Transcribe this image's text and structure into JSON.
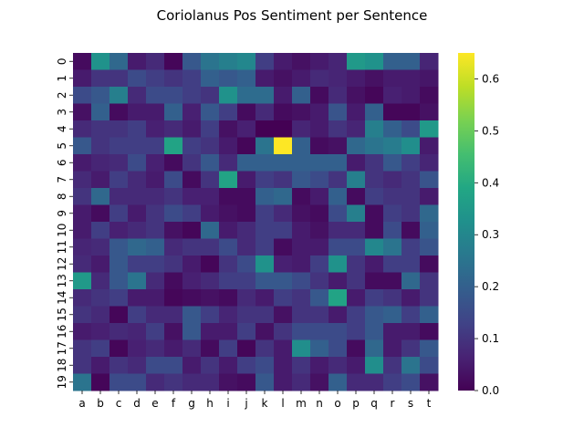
{
  "chart_data": {
    "type": "heatmap",
    "title": "Coriolanus Pos Sentiment per Sentence",
    "xlabel": "",
    "ylabel": "",
    "x_categories": [
      "a",
      "b",
      "c",
      "d",
      "e",
      "f",
      "g",
      "h",
      "i",
      "j",
      "k",
      "l",
      "m",
      "n",
      "o",
      "p",
      "q",
      "r",
      "s",
      "t"
    ],
    "y_categories": [
      "0",
      "1",
      "2",
      "3",
      "4",
      "5",
      "6",
      "7",
      "8",
      "9",
      "10",
      "11",
      "12",
      "13",
      "14",
      "15",
      "16",
      "17",
      "18",
      "19"
    ],
    "colormap": "viridis",
    "vmin": 0.0,
    "vmax": 0.65,
    "colorbar_ticks": [
      "0.0",
      "0.1",
      "0.2",
      "0.3",
      "0.4",
      "0.5",
      "0.6"
    ],
    "values": [
      [
        0.02,
        0.33,
        0.22,
        0.05,
        0.08,
        0.01,
        0.18,
        0.25,
        0.28,
        0.3,
        0.12,
        0.05,
        0.03,
        0.05,
        0.07,
        0.35,
        0.33,
        0.2,
        0.2,
        0.07
      ],
      [
        0.05,
        0.1,
        0.1,
        0.15,
        0.12,
        0.1,
        0.12,
        0.2,
        0.18,
        0.2,
        0.05,
        0.03,
        0.05,
        0.08,
        0.07,
        0.05,
        0.03,
        0.05,
        0.05,
        0.04
      ],
      [
        0.15,
        0.18,
        0.28,
        0.08,
        0.15,
        0.15,
        0.12,
        0.1,
        0.33,
        0.23,
        0.23,
        0.05,
        0.2,
        0.02,
        0.08,
        0.03,
        0.01,
        0.06,
        0.05,
        0.02
      ],
      [
        0.03,
        0.2,
        0.02,
        0.05,
        0.05,
        0.2,
        0.06,
        0.18,
        0.12,
        0.02,
        0.08,
        0.02,
        0.03,
        0.05,
        0.17,
        0.05,
        0.2,
        0.01,
        0.01,
        0.03
      ],
      [
        0.08,
        0.1,
        0.1,
        0.12,
        0.06,
        0.08,
        0.05,
        0.12,
        0.03,
        0.06,
        0.0,
        0.0,
        0.07,
        0.05,
        0.1,
        0.07,
        0.28,
        0.2,
        0.15,
        0.35
      ],
      [
        0.18,
        0.1,
        0.12,
        0.12,
        0.12,
        0.38,
        0.12,
        0.1,
        0.05,
        0.01,
        0.25,
        0.65,
        0.2,
        0.02,
        0.03,
        0.22,
        0.25,
        0.27,
        0.32,
        0.05
      ],
      [
        0.05,
        0.07,
        0.08,
        0.15,
        0.06,
        0.02,
        0.1,
        0.18,
        0.08,
        0.2,
        0.2,
        0.2,
        0.2,
        0.2,
        0.2,
        0.05,
        0.1,
        0.18,
        0.12,
        0.07
      ],
      [
        0.08,
        0.05,
        0.12,
        0.08,
        0.05,
        0.15,
        0.02,
        0.1,
        0.38,
        0.05,
        0.12,
        0.1,
        0.18,
        0.15,
        0.1,
        0.28,
        0.1,
        0.08,
        0.1,
        0.17
      ],
      [
        0.1,
        0.22,
        0.08,
        0.08,
        0.08,
        0.1,
        0.06,
        0.06,
        0.02,
        0.02,
        0.2,
        0.22,
        0.02,
        0.05,
        0.2,
        0.02,
        0.12,
        0.1,
        0.1,
        0.05
      ],
      [
        0.05,
        0.02,
        0.12,
        0.05,
        0.1,
        0.15,
        0.12,
        0.05,
        0.03,
        0.02,
        0.12,
        0.08,
        0.03,
        0.02,
        0.15,
        0.28,
        0.02,
        0.12,
        0.1,
        0.22
      ],
      [
        0.05,
        0.12,
        0.06,
        0.08,
        0.1,
        0.03,
        0.01,
        0.22,
        0.05,
        0.08,
        0.12,
        0.12,
        0.05,
        0.03,
        0.08,
        0.08,
        0.02,
        0.15,
        0.02,
        0.2
      ],
      [
        0.07,
        0.08,
        0.18,
        0.22,
        0.2,
        0.08,
        0.1,
        0.1,
        0.15,
        0.08,
        0.12,
        0.02,
        0.05,
        0.05,
        0.15,
        0.15,
        0.3,
        0.25,
        0.12,
        0.17
      ],
      [
        0.08,
        0.05,
        0.18,
        0.12,
        0.12,
        0.1,
        0.05,
        0.01,
        0.1,
        0.15,
        0.33,
        0.06,
        0.05,
        0.12,
        0.33,
        0.1,
        0.05,
        0.12,
        0.12,
        0.02
      ],
      [
        0.35,
        0.08,
        0.18,
        0.25,
        0.08,
        0.02,
        0.06,
        0.08,
        0.12,
        0.12,
        0.18,
        0.18,
        0.15,
        0.1,
        0.05,
        0.1,
        0.02,
        0.02,
        0.22,
        0.1
      ],
      [
        0.08,
        0.1,
        0.12,
        0.05,
        0.05,
        0.01,
        0.02,
        0.03,
        0.02,
        0.08,
        0.05,
        0.12,
        0.1,
        0.18,
        0.38,
        0.05,
        0.12,
        0.1,
        0.05,
        0.1
      ],
      [
        0.1,
        0.08,
        0.01,
        0.12,
        0.08,
        0.08,
        0.18,
        0.12,
        0.07,
        0.1,
        0.1,
        0.03,
        0.1,
        0.1,
        0.05,
        0.12,
        0.18,
        0.2,
        0.12,
        0.2
      ],
      [
        0.05,
        0.06,
        0.08,
        0.07,
        0.12,
        0.03,
        0.18,
        0.05,
        0.05,
        0.12,
        0.03,
        0.1,
        0.15,
        0.15,
        0.15,
        0.12,
        0.18,
        0.05,
        0.05,
        0.02
      ],
      [
        0.1,
        0.12,
        0.01,
        0.06,
        0.08,
        0.05,
        0.08,
        0.02,
        0.12,
        0.01,
        0.1,
        0.05,
        0.32,
        0.2,
        0.15,
        0.02,
        0.22,
        0.05,
        0.1,
        0.18
      ],
      [
        0.1,
        0.05,
        0.1,
        0.08,
        0.15,
        0.15,
        0.05,
        0.1,
        0.05,
        0.12,
        0.15,
        0.05,
        0.1,
        0.05,
        0.08,
        0.05,
        0.32,
        0.1,
        0.25,
        0.15
      ],
      [
        0.25,
        0.01,
        0.15,
        0.15,
        0.08,
        0.1,
        0.08,
        0.08,
        0.03,
        0.02,
        0.18,
        0.05,
        0.08,
        0.03,
        0.2,
        0.08,
        0.08,
        0.12,
        0.15,
        0.03
      ]
    ]
  }
}
